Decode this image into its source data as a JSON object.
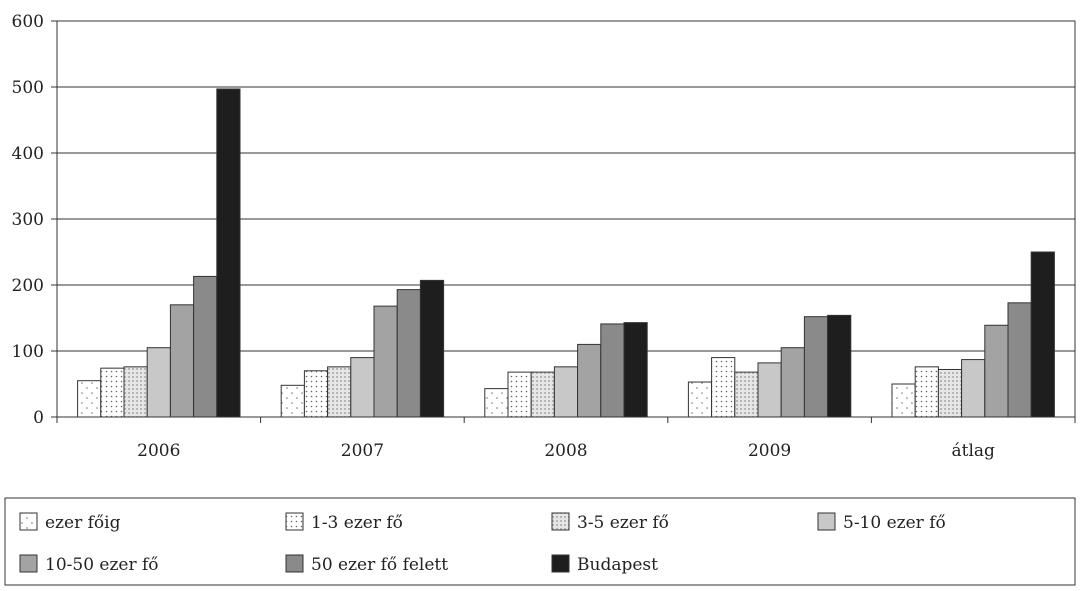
{
  "chart_data": {
    "type": "bar",
    "categories": [
      "2006",
      "2007",
      "2008",
      "2009",
      "átlag"
    ],
    "ylim": [
      0,
      600
    ],
    "yticks": [
      0,
      100,
      200,
      300,
      400,
      500,
      600
    ],
    "grid": true,
    "legend_position": "bottom",
    "series": [
      {
        "name": "ezer főig",
        "values": [
          55,
          48,
          43,
          53,
          50
        ],
        "pattern": "dots-sparse",
        "color": "#ffffff"
      },
      {
        "name": "1-3 ezer fő",
        "values": [
          74,
          70,
          68,
          90,
          76
        ],
        "pattern": "dots-dense",
        "color": "#ffffff"
      },
      {
        "name": "3-5 ezer fő",
        "values": [
          76,
          76,
          68,
          68,
          72
        ],
        "pattern": "grid-dots",
        "color": "#e6e6e6"
      },
      {
        "name": "5-10 ezer fő",
        "values": [
          105,
          90,
          76,
          82,
          87
        ],
        "pattern": "solid",
        "color": "#c8c8c8"
      },
      {
        "name": "10-50 ezer fő",
        "values": [
          170,
          168,
          110,
          105,
          139
        ],
        "pattern": "solid",
        "color": "#a3a3a3"
      },
      {
        "name": "50 ezer fő felett",
        "values": [
          213,
          193,
          141,
          152,
          173
        ],
        "pattern": "solid",
        "color": "#8a8a8a"
      },
      {
        "name": "Budapest",
        "values": [
          497,
          207,
          143,
          154,
          250
        ],
        "pattern": "solid",
        "color": "#1e1e1e"
      }
    ]
  }
}
